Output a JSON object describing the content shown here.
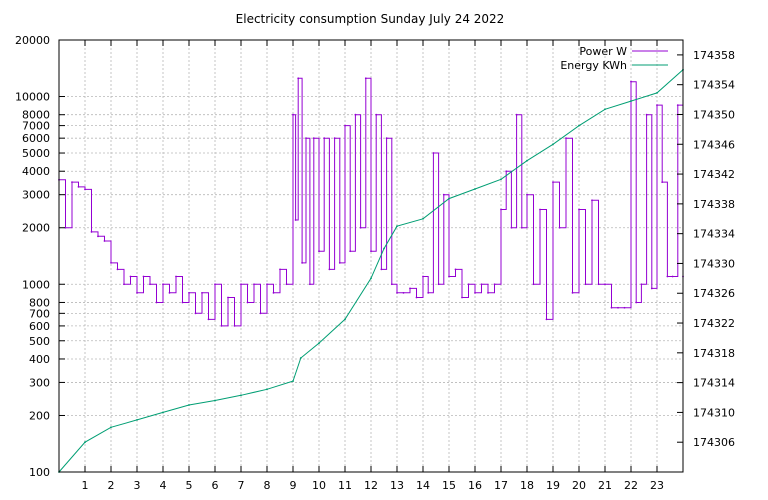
{
  "chart_data": {
    "type": "line",
    "title": "Electricity consumption Sunday July 24 2022",
    "x": {
      "range": [
        0,
        24
      ],
      "ticks": [
        1,
        2,
        3,
        4,
        5,
        6,
        7,
        8,
        9,
        10,
        11,
        12,
        13,
        14,
        15,
        16,
        17,
        18,
        19,
        20,
        21,
        22,
        23
      ]
    },
    "y_left": {
      "scale": "log",
      "range": [
        100,
        20000
      ],
      "ticks": [
        100,
        200,
        300,
        400,
        500,
        600,
        700,
        800,
        1000,
        2000,
        3000,
        4000,
        5000,
        6000,
        7000,
        8000,
        10000,
        20000
      ]
    },
    "y_right": {
      "scale": "linear",
      "range": [
        174302,
        174360
      ],
      "ticks": [
        174306,
        174310,
        174314,
        174318,
        174322,
        174326,
        174330,
        174334,
        174338,
        174342,
        174346,
        174350,
        174354,
        174358
      ]
    },
    "grid": true,
    "legend_position": "top-right",
    "colors": {
      "power": "#9400d3",
      "energy": "#009e73"
    },
    "series": [
      {
        "name": "Power W",
        "axis": "left",
        "color": "#9400d3",
        "points": [
          [
            0.0,
            3600
          ],
          [
            0.25,
            2000
          ],
          [
            0.5,
            3500
          ],
          [
            0.75,
            3300
          ],
          [
            1.0,
            3200
          ],
          [
            1.25,
            1900
          ],
          [
            1.5,
            1800
          ],
          [
            1.75,
            1700
          ],
          [
            2.0,
            1300
          ],
          [
            2.25,
            1200
          ],
          [
            2.5,
            1000
          ],
          [
            2.75,
            1100
          ],
          [
            3.0,
            900
          ],
          [
            3.25,
            1100
          ],
          [
            3.5,
            1000
          ],
          [
            3.75,
            800
          ],
          [
            4.0,
            1000
          ],
          [
            4.25,
            900
          ],
          [
            4.5,
            1100
          ],
          [
            4.75,
            800
          ],
          [
            5.0,
            900
          ],
          [
            5.25,
            700
          ],
          [
            5.5,
            900
          ],
          [
            5.75,
            650
          ],
          [
            6.0,
            1000
          ],
          [
            6.25,
            600
          ],
          [
            6.5,
            850
          ],
          [
            6.75,
            600
          ],
          [
            7.0,
            1000
          ],
          [
            7.25,
            800
          ],
          [
            7.5,
            1000
          ],
          [
            7.75,
            700
          ],
          [
            8.0,
            1000
          ],
          [
            8.25,
            900
          ],
          [
            8.5,
            1200
          ],
          [
            8.75,
            1000
          ],
          [
            9.0,
            8000
          ],
          [
            9.1,
            2200
          ],
          [
            9.2,
            12500
          ],
          [
            9.35,
            1300
          ],
          [
            9.5,
            6000
          ],
          [
            9.65,
            1000
          ],
          [
            9.8,
            6000
          ],
          [
            10.0,
            1500
          ],
          [
            10.2,
            6000
          ],
          [
            10.4,
            1200
          ],
          [
            10.6,
            6000
          ],
          [
            10.8,
            1300
          ],
          [
            11.0,
            7000
          ],
          [
            11.2,
            1500
          ],
          [
            11.4,
            8000
          ],
          [
            11.6,
            2000
          ],
          [
            11.8,
            12500
          ],
          [
            12.0,
            1500
          ],
          [
            12.2,
            8000
          ],
          [
            12.4,
            1200
          ],
          [
            12.6,
            6000
          ],
          [
            12.8,
            1000
          ],
          [
            13.0,
            900
          ],
          [
            13.25,
            900
          ],
          [
            13.5,
            950
          ],
          [
            13.75,
            850
          ],
          [
            14.0,
            1100
          ],
          [
            14.2,
            900
          ],
          [
            14.4,
            5000
          ],
          [
            14.6,
            1000
          ],
          [
            14.8,
            3000
          ],
          [
            15.0,
            1100
          ],
          [
            15.25,
            1200
          ],
          [
            15.5,
            850
          ],
          [
            15.75,
            1000
          ],
          [
            16.0,
            900
          ],
          [
            16.25,
            1000
          ],
          [
            16.5,
            900
          ],
          [
            16.75,
            1000
          ],
          [
            17.0,
            2500
          ],
          [
            17.2,
            4000
          ],
          [
            17.4,
            2000
          ],
          [
            17.6,
            8000
          ],
          [
            17.8,
            2000
          ],
          [
            18.0,
            3000
          ],
          [
            18.25,
            1000
          ],
          [
            18.5,
            2500
          ],
          [
            18.75,
            650
          ],
          [
            19.0,
            3500
          ],
          [
            19.25,
            2000
          ],
          [
            19.5,
            6000
          ],
          [
            19.75,
            900
          ],
          [
            20.0,
            2500
          ],
          [
            20.25,
            1000
          ],
          [
            20.5,
            2800
          ],
          [
            20.75,
            1000
          ],
          [
            21.0,
            1000
          ],
          [
            21.25,
            750
          ],
          [
            21.5,
            750
          ],
          [
            21.75,
            750
          ],
          [
            22.0,
            12000
          ],
          [
            22.2,
            800
          ],
          [
            22.4,
            1000
          ],
          [
            22.6,
            8000
          ],
          [
            22.8,
            950
          ],
          [
            23.0,
            9000
          ],
          [
            23.2,
            3500
          ],
          [
            23.4,
            1100
          ],
          [
            23.6,
            1100
          ],
          [
            23.8,
            9000
          ],
          [
            24.0,
            1100
          ]
        ]
      },
      {
        "name": "Energy KWh",
        "axis": "right",
        "color": "#009e73",
        "points": [
          [
            0.0,
            174302
          ],
          [
            1.0,
            174306
          ],
          [
            2.0,
            174308
          ],
          [
            3.0,
            174309
          ],
          [
            4.0,
            174310
          ],
          [
            5.0,
            174311
          ],
          [
            6.0,
            174311.6
          ],
          [
            7.0,
            174312.3
          ],
          [
            8.0,
            174313.1
          ],
          [
            9.0,
            174314.2
          ],
          [
            9.3,
            174317.3
          ],
          [
            10.0,
            174319.3
          ],
          [
            11.0,
            174322.5
          ],
          [
            12.0,
            174328
          ],
          [
            12.5,
            174332
          ],
          [
            13.0,
            174335
          ],
          [
            14.0,
            174336
          ],
          [
            15.0,
            174338.7
          ],
          [
            16.0,
            174340
          ],
          [
            17.0,
            174341.3
          ],
          [
            18.0,
            174343.8
          ],
          [
            19.0,
            174346
          ],
          [
            20.0,
            174348.5
          ],
          [
            21.0,
            174350.7
          ],
          [
            22.0,
            174351.8
          ],
          [
            23.0,
            174352.9
          ],
          [
            24.0,
            174356
          ]
        ]
      }
    ]
  }
}
